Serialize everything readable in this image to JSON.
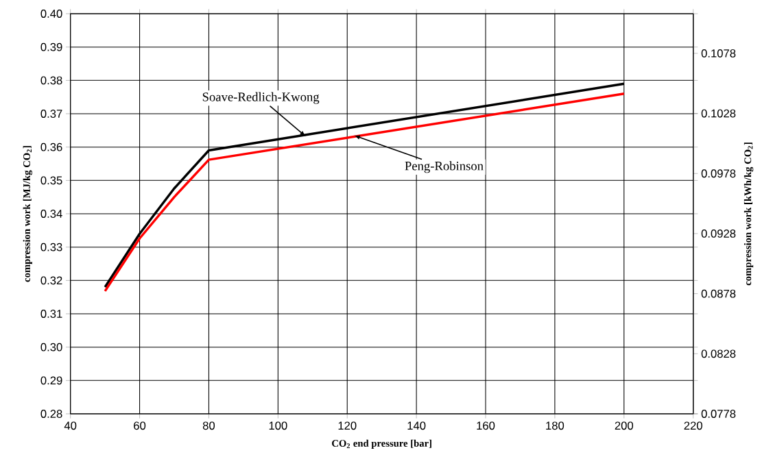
{
  "chart_data": {
    "type": "line",
    "xlabel": "CO$_{2}$ end pressure [bar]",
    "ylabel": "compression work [MJ/kg CO$_{2}$]",
    "y2label": "compression work [kWh/kg CO$_{2}$]",
    "x": [
      50,
      60,
      70,
      80,
      200
    ],
    "series": [
      {
        "color": "#000000",
        "values": [
          0.318,
          0.334,
          0.3476,
          0.359,
          0.379
        ]
      },
      {
        "color": "#ff0000",
        "values": [
          0.3168,
          0.3326,
          0.345,
          0.3562,
          0.376
        ]
      }
    ],
    "xlim": [
      40,
      220
    ],
    "xticks": [
      40,
      60,
      80,
      100,
      120,
      140,
      160,
      180,
      200,
      220
    ],
    "ylim": [
      0.28,
      0.4
    ],
    "yticks": [
      {
        "value": 0.28,
        "label": "0.28"
      },
      {
        "value": 0.29,
        "label": "0.29"
      },
      {
        "value": 0.3,
        "label": "0.30"
      },
      {
        "value": 0.31,
        "label": "0.31"
      },
      {
        "value": 0.32,
        "label": "0.32"
      },
      {
        "value": 0.33,
        "label": "0.33"
      },
      {
        "value": 0.34,
        "label": "0.34"
      },
      {
        "value": 0.35,
        "label": "0.35"
      },
      {
        "value": 0.36,
        "label": "0.36"
      },
      {
        "value": 0.37,
        "label": "0.37"
      },
      {
        "value": 0.38,
        "label": "0.38"
      },
      {
        "value": 0.39,
        "label": "0.39"
      },
      {
        "value": 0.4,
        "label": "0.40"
      }
    ],
    "y2lim": [
      0.0778,
      0.1111
    ],
    "y2ticks": [
      0.0778,
      0.0828,
      0.0878,
      0.0928,
      0.0978,
      0.1028,
      0.1078
    ],
    "annotations": [
      {
        "text": "Soave-Redlich-Kwong",
        "x": 108,
        "y": 0.3632
      },
      {
        "text": "Peng-Robinson",
        "x": 122,
        "y": 0.3635
      }
    ],
    "grid": true,
    "marker": "none",
    "line_style": "solid"
  }
}
